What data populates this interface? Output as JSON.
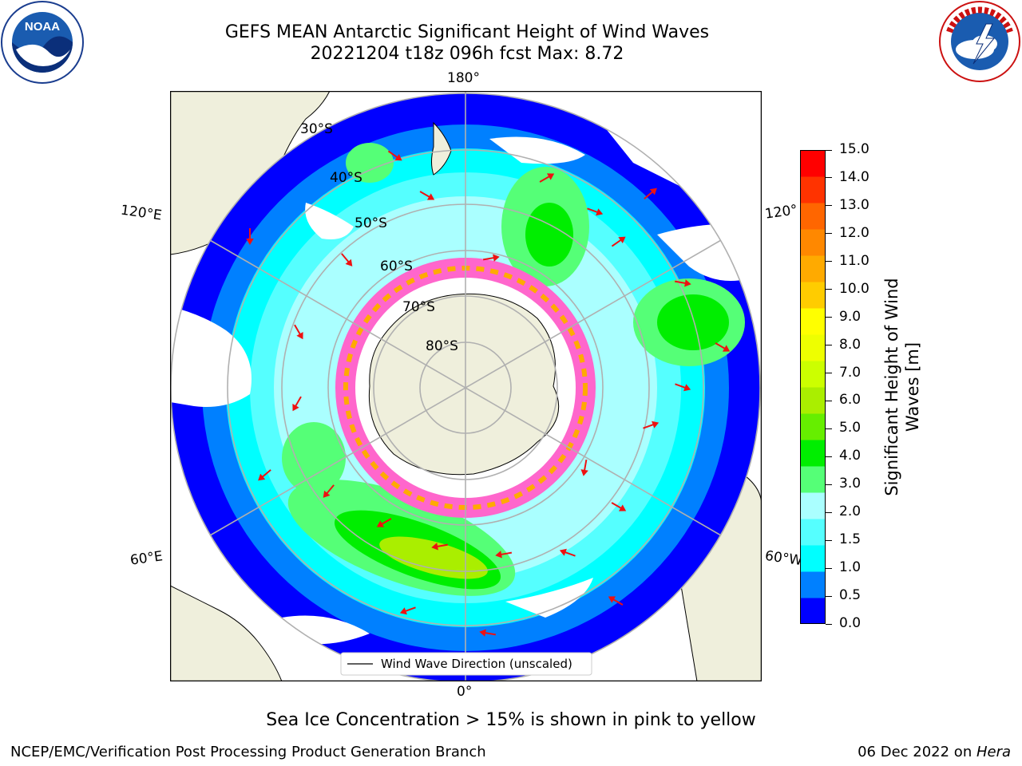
{
  "title": {
    "line1": "GEFS MEAN Antarctic Significant Height of Wind Waves",
    "line2": "20221204 t18z 096h fcst   Max: 8.72"
  },
  "logos": {
    "noaa": {
      "text": "NOAA",
      "ring_text": "NATIONAL OCEANIC AND ATMOSPHERIC ADMINISTRATION • U.S. DEPARTMENT OF COMMERCE",
      "icon": "noaa-logo"
    },
    "nws": {
      "ring_text": "NATIONAL WEATHER SERVICE",
      "icon": "nws-logo"
    }
  },
  "map": {
    "longitude_labels": {
      "top": "180°",
      "bottom": "0°",
      "left_upper": "120°E",
      "left_lower": "60°E",
      "right_upper": "120°",
      "right_lower": "60°W"
    },
    "latitude_labels": [
      "30°S",
      "40°S",
      "50°S",
      "60°S",
      "70°S",
      "80°S"
    ],
    "legend": "Wind Wave Direction (unscaled)",
    "colors": {
      "land": "#efefdc",
      "ocean_low": "#0000ff",
      "sea_ice": "#ff66cc",
      "arrow": "#ee1111",
      "grid": "#b0b0b0"
    }
  },
  "colorbar": {
    "label": "Significant Height of Wind Waves [m]",
    "ticks": [
      "15.0",
      "14.0",
      "13.0",
      "12.0",
      "11.0",
      "10.0",
      "9.0",
      "8.0",
      "7.0",
      "6.0",
      "5.0",
      "4.0",
      "3.0",
      "2.0",
      "1.5",
      "1.0",
      "0.5",
      "0.0"
    ],
    "colors": [
      "#0000ff",
      "#0080ff",
      "#00ffff",
      "#55ffff",
      "#aaffff",
      "#55ff77",
      "#00ee00",
      "#66ee00",
      "#aaee00",
      "#ccff00",
      "#eeff00",
      "#ffff00",
      "#ffcc00",
      "#ffaa00",
      "#ff8800",
      "#ff6600",
      "#ff3300",
      "#ff0000"
    ]
  },
  "subtitle": "Sea Ice Concentration > 15% is shown in pink to yellow",
  "footer": {
    "left": "NCEP/EMC/Verification Post Processing Product Generation Branch",
    "right_prefix": "06 Dec 2022 on ",
    "right_host": "Hera"
  }
}
